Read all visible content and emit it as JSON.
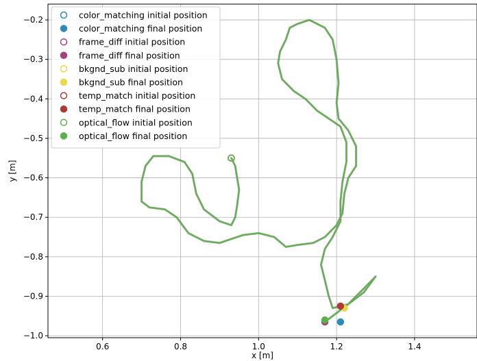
{
  "chart_data": {
    "type": "line",
    "xlabel": "x [m]",
    "ylabel": "y [m]",
    "xlim": [
      0.46,
      1.56
    ],
    "ylim": [
      -1.005,
      -0.16
    ],
    "xticks": [
      0.6,
      0.8,
      1.0,
      1.2,
      1.4
    ],
    "xtick_labels": [
      "0.6",
      "0.8",
      "1.0",
      "1.2",
      "1.4"
    ],
    "yticks": [
      -0.2,
      -0.3,
      -0.4,
      -0.5,
      -0.6,
      -0.7,
      -0.8,
      -0.9,
      -1.0
    ],
    "ytick_labels": [
      "−0.2",
      "−0.3",
      "−0.4",
      "−0.5",
      "−0.6",
      "−0.7",
      "−0.8",
      "−0.9",
      "−1.0"
    ],
    "grid": true,
    "legend_position": "top-left",
    "path_color": "#5db14a",
    "path": [
      [
        0.93,
        -0.55
      ],
      [
        0.94,
        -0.57
      ],
      [
        0.945,
        -0.6
      ],
      [
        0.95,
        -0.63
      ],
      [
        0.945,
        -0.67
      ],
      [
        0.94,
        -0.7
      ],
      [
        0.93,
        -0.72
      ],
      [
        0.9,
        -0.71
      ],
      [
        0.86,
        -0.68
      ],
      [
        0.84,
        -0.64
      ],
      [
        0.83,
        -0.59
      ],
      [
        0.81,
        -0.56
      ],
      [
        0.77,
        -0.545
      ],
      [
        0.73,
        -0.545
      ],
      [
        0.71,
        -0.57
      ],
      [
        0.7,
        -0.61
      ],
      [
        0.7,
        -0.66
      ],
      [
        0.72,
        -0.675
      ],
      [
        0.76,
        -0.68
      ],
      [
        0.79,
        -0.7
      ],
      [
        0.82,
        -0.74
      ],
      [
        0.86,
        -0.76
      ],
      [
        0.9,
        -0.765
      ],
      [
        0.93,
        -0.755
      ],
      [
        0.96,
        -0.745
      ],
      [
        1.0,
        -0.74
      ],
      [
        1.04,
        -0.75
      ],
      [
        1.07,
        -0.775
      ],
      [
        1.1,
        -0.77
      ],
      [
        1.14,
        -0.765
      ],
      [
        1.17,
        -0.75
      ],
      [
        1.2,
        -0.72
      ],
      [
        1.215,
        -0.69
      ],
      [
        1.22,
        -0.64
      ],
      [
        1.23,
        -0.6
      ],
      [
        1.25,
        -0.57
      ],
      [
        1.25,
        -0.52
      ],
      [
        1.23,
        -0.48
      ],
      [
        1.205,
        -0.45
      ],
      [
        1.2,
        -0.41
      ],
      [
        1.205,
        -0.36
      ],
      [
        1.2,
        -0.3
      ],
      [
        1.19,
        -0.25
      ],
      [
        1.17,
        -0.22
      ],
      [
        1.13,
        -0.2
      ],
      [
        1.1,
        -0.21
      ],
      [
        1.08,
        -0.22
      ],
      [
        1.07,
        -0.25
      ],
      [
        1.055,
        -0.28
      ],
      [
        1.05,
        -0.31
      ],
      [
        1.06,
        -0.35
      ],
      [
        1.09,
        -0.38
      ],
      [
        1.12,
        -0.4
      ],
      [
        1.15,
        -0.43
      ],
      [
        1.18,
        -0.45
      ],
      [
        1.21,
        -0.47
      ],
      [
        1.225,
        -0.51
      ],
      [
        1.225,
        -0.56
      ],
      [
        1.215,
        -0.61
      ],
      [
        1.21,
        -0.66
      ],
      [
        1.21,
        -0.71
      ],
      [
        1.19,
        -0.75
      ],
      [
        1.17,
        -0.78
      ],
      [
        1.16,
        -0.82
      ],
      [
        1.17,
        -0.86
      ],
      [
        1.18,
        -0.9
      ],
      [
        1.19,
        -0.93
      ],
      [
        1.23,
        -0.92
      ],
      [
        1.27,
        -0.89
      ],
      [
        1.3,
        -0.85
      ],
      [
        1.27,
        -0.88
      ],
      [
        1.23,
        -0.92
      ],
      [
        1.19,
        -0.95
      ],
      [
        1.17,
        -0.965
      ]
    ],
    "series": [
      {
        "name": "color_matching initial position",
        "color": "#2e8ab9",
        "marker": "open",
        "x": 0.93,
        "y": -0.55
      },
      {
        "name": "color_matching final position",
        "color": "#2e8ab9",
        "marker": "filled",
        "x": 1.21,
        "y": -0.965
      },
      {
        "name": "frame_diff initial position",
        "color": "#a3417e",
        "marker": "open",
        "x": 0.93,
        "y": -0.55
      },
      {
        "name": "frame_diff final position",
        "color": "#a3417e",
        "marker": "filled",
        "x": 1.17,
        "y": -0.965
      },
      {
        "name": "bkgnd_sub initial position",
        "color": "#e6d94a",
        "marker": "open",
        "x": 0.93,
        "y": -0.55
      },
      {
        "name": "bkgnd_sub final position",
        "color": "#e6d94a",
        "marker": "filled",
        "x": 1.22,
        "y": -0.93
      },
      {
        "name": "temp_match initial position",
        "color": "#b03a35",
        "marker": "open",
        "x": 0.93,
        "y": -0.55
      },
      {
        "name": "temp_match final position",
        "color": "#b03a35",
        "marker": "filled",
        "x": 1.21,
        "y": -0.925
      },
      {
        "name": "optical_flow initial position",
        "color": "#5db14a",
        "marker": "open",
        "x": 0.93,
        "y": -0.55
      },
      {
        "name": "optical_flow final position",
        "color": "#5db14a",
        "marker": "filled",
        "x": 1.17,
        "y": -0.96
      }
    ]
  }
}
